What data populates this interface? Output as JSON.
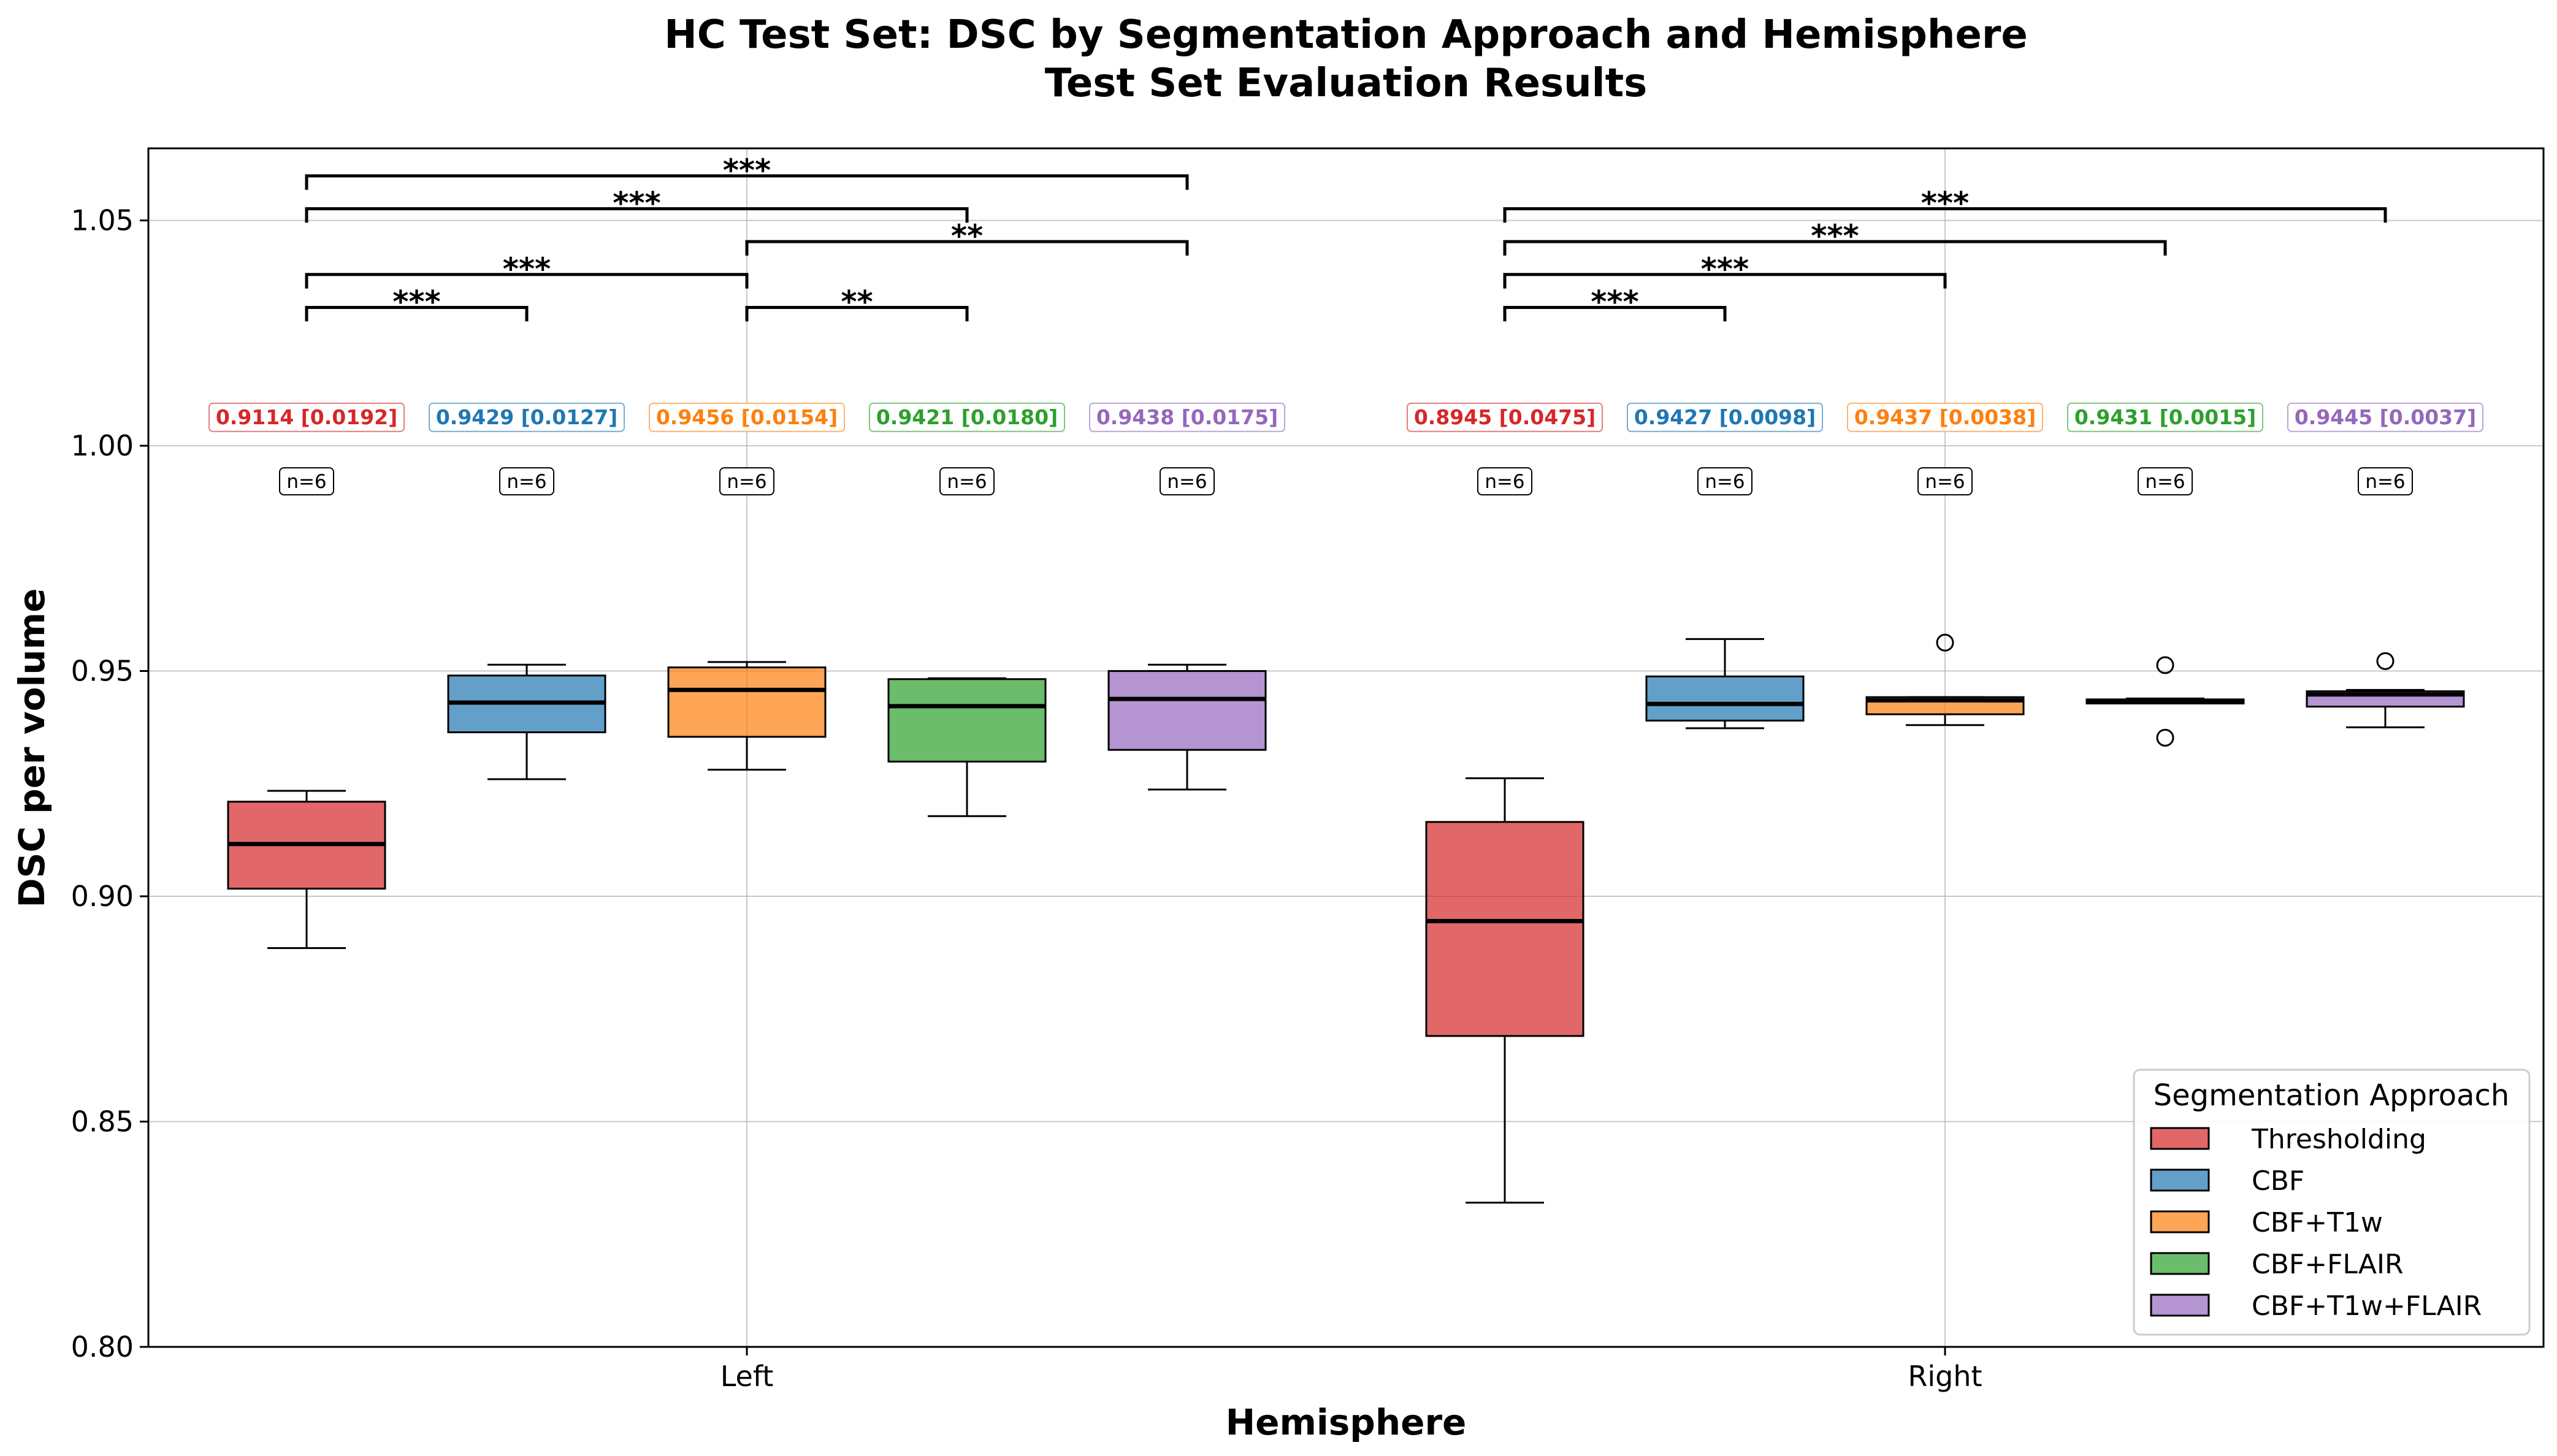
{
  "chart_data": {
    "type": "box",
    "title": "HC Test Set: DSC by Segmentation Approach and Hemisphere",
    "subtitle": "Test Set Evaluation Results",
    "xlabel": "Hemisphere",
    "ylabel": "DSC per volume",
    "ylim": [
      0.8,
      1.066
    ],
    "yticks": [
      "0.80",
      "0.85",
      "0.90",
      "0.95",
      "1.00",
      "1.05"
    ],
    "grid": true,
    "categories": [
      "Left",
      "Right"
    ],
    "legend": {
      "title": "Segmentation Approach",
      "placement": "lower-right",
      "entries": [
        "Thresholding",
        "CBF",
        "CBF+T1w",
        "CBF+FLAIR",
        "CBF+T1w+FLAIR"
      ]
    },
    "series": [
      {
        "name": "Thresholding",
        "color": "#d62728",
        "boxes": [
          {
            "group": "Left",
            "whislo": 0.8885,
            "q1": 0.9017,
            "median": 0.9116,
            "q3": 0.921,
            "whishi": 0.9234,
            "fliers": [],
            "stat_label": "0.9114 [0.0192]",
            "n_label": "n=6"
          },
          {
            "group": "Right",
            "whislo": 0.832,
            "q1": 0.869,
            "median": 0.8945,
            "q3": 0.9165,
            "whishi": 0.9262,
            "fliers": [],
            "stat_label": "0.8945 [0.0475]",
            "n_label": "n=6"
          }
        ]
      },
      {
        "name": "CBF",
        "color": "#1f77b4",
        "boxes": [
          {
            "group": "Left",
            "whislo": 0.926,
            "q1": 0.9364,
            "median": 0.943,
            "q3": 0.949,
            "whishi": 0.9514,
            "fliers": [],
            "stat_label": "0.9429 [0.0127]",
            "n_label": "n=6"
          },
          {
            "group": "Right",
            "whislo": 0.9373,
            "q1": 0.939,
            "median": 0.9427,
            "q3": 0.9488,
            "whishi": 0.9571,
            "fliers": [],
            "stat_label": "0.9427 [0.0098]",
            "n_label": "n=6"
          }
        ]
      },
      {
        "name": "CBF+T1w",
        "color": "#ff7f0e",
        "boxes": [
          {
            "group": "Left",
            "whislo": 0.9281,
            "q1": 0.9354,
            "median": 0.9458,
            "q3": 0.9508,
            "whishi": 0.952,
            "fliers": [],
            "stat_label": "0.9456 [0.0154]",
            "n_label": "n=6"
          },
          {
            "group": "Right",
            "whislo": 0.938,
            "q1": 0.9404,
            "median": 0.9435,
            "q3": 0.9442,
            "whishi": 0.9442,
            "fliers": [
              0.9563
            ],
            "stat_label": "0.9437 [0.0038]",
            "n_label": "n=6"
          }
        ]
      },
      {
        "name": "CBF+FLAIR",
        "color": "#2ca02c",
        "boxes": [
          {
            "group": "Left",
            "whislo": 0.9178,
            "q1": 0.9299,
            "median": 0.9422,
            "q3": 0.9482,
            "whishi": 0.9484,
            "fliers": [],
            "stat_label": "0.9421 [0.0180]",
            "n_label": "n=6"
          },
          {
            "group": "Right",
            "whislo": 0.9428,
            "q1": 0.9428,
            "median": 0.9433,
            "q3": 0.9437,
            "whishi": 0.9439,
            "fliers": [
              0.9513,
              0.9352
            ],
            "stat_label": "0.9431 [0.0015]",
            "n_label": "n=6"
          }
        ]
      },
      {
        "name": "CBF+T1w+FLAIR",
        "color": "#9467bd",
        "boxes": [
          {
            "group": "Left",
            "whislo": 0.9237,
            "q1": 0.9325,
            "median": 0.9438,
            "q3": 0.95,
            "whishi": 0.9514,
            "fliers": [],
            "stat_label": "0.9438 [0.0175]",
            "n_label": "n=6"
          },
          {
            "group": "Right",
            "whislo": 0.9375,
            "q1": 0.9421,
            "median": 0.9448,
            "q3": 0.9455,
            "whishi": 0.9458,
            "fliers": [
              0.9522
            ],
            "stat_label": "0.9445 [0.0037]",
            "n_label": "n=6"
          }
        ]
      }
    ],
    "significance": [
      {
        "group": "Left",
        "from": 0,
        "to": 1,
        "y": 1.0307,
        "label": "***"
      },
      {
        "group": "Left",
        "from": 0,
        "to": 2,
        "y": 1.038,
        "label": "***"
      },
      {
        "group": "Left",
        "from": 0,
        "to": 3,
        "y": 1.0526,
        "label": "***"
      },
      {
        "group": "Left",
        "from": 0,
        "to": 4,
        "y": 1.0599,
        "label": "***"
      },
      {
        "group": "Left",
        "from": 2,
        "to": 3,
        "y": 1.0307,
        "label": "**"
      },
      {
        "group": "Left",
        "from": 2,
        "to": 4,
        "y": 1.0453,
        "label": "**"
      },
      {
        "group": "Right",
        "from": 0,
        "to": 1,
        "y": 1.0307,
        "label": "***"
      },
      {
        "group": "Right",
        "from": 0,
        "to": 2,
        "y": 1.038,
        "label": "***"
      },
      {
        "group": "Right",
        "from": 0,
        "to": 3,
        "y": 1.0453,
        "label": "***"
      },
      {
        "group": "Right",
        "from": 0,
        "to": 4,
        "y": 1.0526,
        "label": "***"
      }
    ]
  }
}
